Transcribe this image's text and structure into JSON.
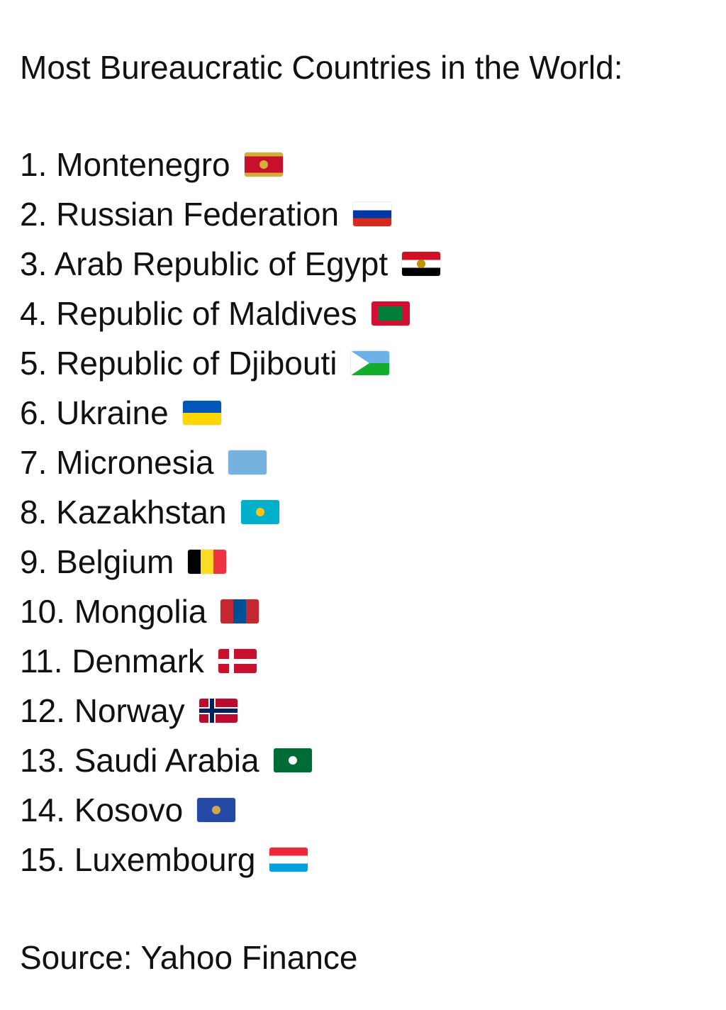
{
  "title": "Most Bureaucratic Countries in the World:",
  "items": [
    {
      "rank": "1.",
      "name": "Montenegro",
      "flag": {
        "icon": "montenegro-flag",
        "dir": "h",
        "stripes": [
          "#d4af37",
          "#c8102e",
          "#c8102e",
          "#c8102e",
          "#c8102e",
          "#d4af37"
        ],
        "emblem": "#d4af37"
      }
    },
    {
      "rank": "2.",
      "name": "Russian Federation",
      "flag": {
        "icon": "russia-flag",
        "dir": "h",
        "stripes": [
          "#ffffff",
          "#0039a6",
          "#d52b1e"
        ]
      }
    },
    {
      "rank": "3.",
      "name": "Arab Republic of Egypt",
      "flag": {
        "icon": "egypt-flag",
        "dir": "h",
        "stripes": [
          "#ce1126",
          "#ffffff",
          "#000000"
        ],
        "emblem": "#c09300"
      }
    },
    {
      "rank": "4.",
      "name": "Republic of Maldives",
      "flag": {
        "icon": "maldives-flag",
        "dir": "h",
        "stripes": [
          "#d21034"
        ],
        "inner": "#007e3a"
      }
    },
    {
      "rank": "5.",
      "name": "Republic of Djibouti",
      "flag": {
        "icon": "djibouti-flag",
        "dir": "h",
        "stripes": [
          "#6ab2e7",
          "#12ad2b"
        ],
        "triangle": "#ffffff"
      }
    },
    {
      "rank": "6.",
      "name": "Ukraine",
      "flag": {
        "icon": "ukraine-flag",
        "dir": "h",
        "stripes": [
          "#0057b7",
          "#ffd700"
        ]
      }
    },
    {
      "rank": "7.",
      "name": "Micronesia",
      "flag": {
        "icon": "micronesia-flag",
        "dir": "h",
        "stripes": [
          "#75b2dd"
        ]
      }
    },
    {
      "rank": "8.",
      "name": "Kazakhstan",
      "flag": {
        "icon": "kazakhstan-flag",
        "dir": "h",
        "stripes": [
          "#00afca"
        ],
        "emblem": "#fec50c"
      }
    },
    {
      "rank": "9.",
      "name": "Belgium",
      "flag": {
        "icon": "belgium-flag",
        "dir": "v",
        "stripes": [
          "#000000",
          "#fdda24",
          "#ef3340"
        ]
      }
    },
    {
      "rank": "10.",
      "name": "Mongolia",
      "flag": {
        "icon": "mongolia-flag",
        "dir": "v",
        "stripes": [
          "#c4272f",
          "#015197",
          "#c4272f"
        ]
      }
    },
    {
      "rank": "11.",
      "name": "Denmark",
      "flag": {
        "icon": "denmark-flag",
        "dir": "h",
        "stripes": [
          "#c8102e"
        ],
        "cross": "#ffffff"
      }
    },
    {
      "rank": "12.",
      "name": "Norway",
      "flag": {
        "icon": "norway-flag",
        "dir": "h",
        "stripes": [
          "#ba0c2f"
        ],
        "cross": "#00205b",
        "crossBorder": "#ffffff"
      }
    },
    {
      "rank": "13.",
      "name": "Saudi Arabia",
      "flag": {
        "icon": "saudi-arabia-flag",
        "dir": "h",
        "stripes": [
          "#006c35"
        ],
        "emblem": "#ffffff"
      }
    },
    {
      "rank": "14.",
      "name": "Kosovo",
      "flag": {
        "icon": "kosovo-flag",
        "dir": "h",
        "stripes": [
          "#244aa5"
        ],
        "emblem": "#d0a650"
      }
    },
    {
      "rank": "15.",
      "name": "Luxembourg",
      "flag": {
        "icon": "luxembourg-flag",
        "dir": "h",
        "stripes": [
          "#ed2939",
          "#ffffff",
          "#00a1de"
        ]
      }
    }
  ],
  "source": "Source: Yahoo Finance"
}
